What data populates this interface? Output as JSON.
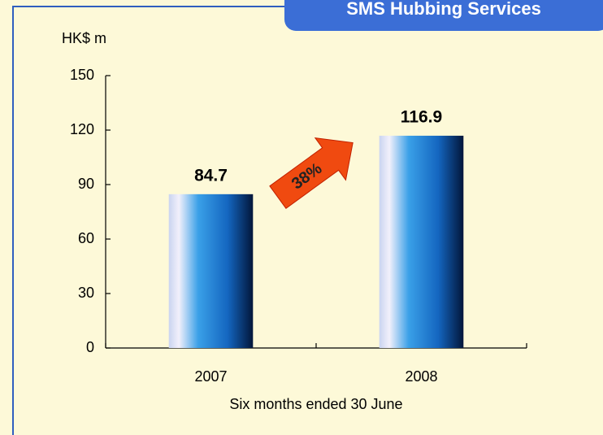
{
  "chart_data": {
    "type": "bar",
    "title": "SMS Hubbing Services",
    "y_label": "HK$ m",
    "x_label": "Six months ended 30 June",
    "annotation": "38%",
    "categories": [
      "2007",
      "2008"
    ],
    "values": [
      84.7,
      116.9
    ],
    "ylim": [
      0,
      150
    ],
    "yticks": [
      0,
      30,
      60,
      90,
      120,
      150
    ]
  }
}
